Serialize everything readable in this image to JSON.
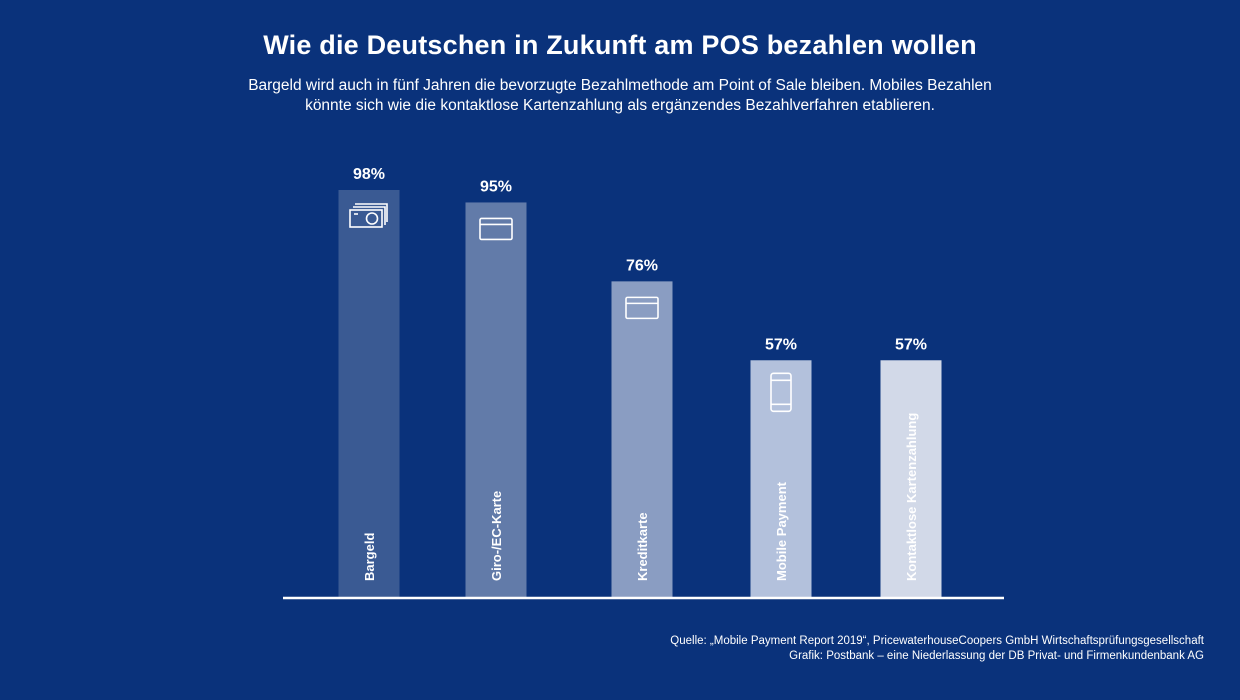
{
  "title": "Wie die Deutschen in Zukunft am POS bezahlen wollen",
  "subtitle_line1": "Bargeld wird auch in fünf Jahren die bevorzugte Bezahlmethode am Point of Sale bleiben. Mobiles Bezahlen",
  "subtitle_line2": "könnte sich wie die kontaktlose Kartenzahlung als ergänzendes Bezahlverfahren etablieren.",
  "source_line1": "Quelle:  „Mobile Payment Report 2019“, PricewaterhouseCoopers GmbH Wirtschaftsprüfungsgesellschaft",
  "source_line2": "Grafik: Postbank – eine Niederlassung der DB Privat- und Firmenkundenbank AG",
  "chart_data": {
    "type": "bar",
    "categories": [
      "Bargeld",
      "Giro-/EC-Karte",
      "Kreditkarte",
      "Mobile Payment",
      "Kontaktlose Kartenzahlung"
    ],
    "values": [
      98,
      95,
      76,
      57,
      57
    ],
    "value_labels": [
      "98%",
      "95%",
      "76%",
      "57%",
      "57%"
    ],
    "icons": [
      "banknotes-icon",
      "card-icon",
      "card-icon",
      "smartphone-icon",
      ""
    ],
    "colors": [
      "#3a5a93",
      "#627ba9",
      "#8a9dc2",
      "#b3c1dc",
      "#d2d9e8"
    ],
    "ylim": [
      0,
      100
    ],
    "grid": false,
    "legend": "none",
    "ylabel": "",
    "xlabel": ""
  }
}
